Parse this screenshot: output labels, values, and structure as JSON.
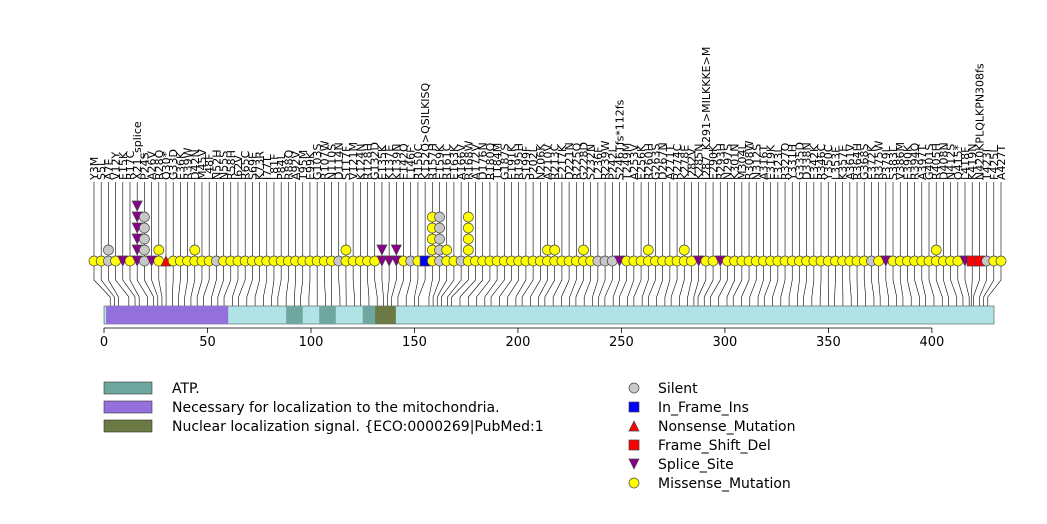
{
  "chart_data": {
    "type": "scatter",
    "protein_length": 430,
    "x_axis": {
      "ticks": [
        0,
        50,
        100,
        150,
        200,
        250,
        300,
        350,
        400
      ],
      "range": [
        0,
        430
      ]
    },
    "domains": [
      {
        "name": "Necessary for localization to the mitochondria.",
        "start": 1,
        "end": 60,
        "color": "#9370db"
      },
      {
        "name": "ATP.",
        "start": 88,
        "end": 96,
        "color": "#6ea6a0"
      },
      {
        "name": "ATP.",
        "start": 104,
        "end": 112,
        "color": "#6ea6a0"
      },
      {
        "name": "ATP.",
        "start": 125,
        "end": 132,
        "color": "#6ea6a0"
      },
      {
        "name": "Nuclear localization signal. {ECO:0000269|PubMed:1",
        "start": 131,
        "end": 141,
        "color": "#6b7a45"
      }
    ],
    "legend_domains": [
      {
        "label": "ATP.",
        "color": "#6ea6a0"
      },
      {
        "label": "Necessary for localization to the mitochondria.",
        "color": "#9370db"
      },
      {
        "label": "Nuclear localization signal. {ECO:0000269|PubMed:1",
        "color": "#6b7a45"
      }
    ],
    "legend_types": [
      {
        "label": "Silent",
        "shape": "circle",
        "color": "#c8c8c8"
      },
      {
        "label": "In_Frame_Ins",
        "shape": "square",
        "color": "#0000ff"
      },
      {
        "label": "Nonsense_Mutation",
        "shape": "triangle-up",
        "color": "#ff0000"
      },
      {
        "label": "Frame_Shift_Del",
        "shape": "square",
        "color": "#ff0000"
      },
      {
        "label": "Splice_Site",
        "shape": "triangle-down",
        "color": "#8b008b"
      },
      {
        "label": "Missense_Mutation",
        "shape": "circle",
        "color": "#ffff00"
      }
    ],
    "mutations": [
      {
        "label": "Y3M",
        "pos": 3,
        "type": "Missense_Mutation",
        "count": 1
      },
      {
        "label": "S5L",
        "pos": 5,
        "type": "Missense_Mutation",
        "count": 1
      },
      {
        "label": "A7E",
        "pos": 7,
        "type": "Silent",
        "count": 2
      },
      {
        "label": "V12Y",
        "pos": 12,
        "type": "Missense_Mutation",
        "count": 1
      },
      {
        "label": "E15K",
        "pos": 15,
        "type": "Splice_Site",
        "count": 1
      },
      {
        "label": "R17C",
        "pos": 17,
        "type": "Missense_Mutation",
        "count": 1
      },
      {
        "label": "X21_splice",
        "pos": 21,
        "type": "Splice_Site",
        "count": 6
      },
      {
        "label": "P24S",
        "pos": 24,
        "type": "Silent",
        "count": 5
      },
      {
        "label": "A26V",
        "pos": 26,
        "type": "Splice_Site",
        "count": 1
      },
      {
        "label": "R28Q",
        "pos": 28,
        "type": "Missense_Mutation",
        "count": 2
      },
      {
        "label": "Q30*",
        "pos": 30,
        "type": "Nonsense_Mutation",
        "count": 1
      },
      {
        "label": "G33D",
        "pos": 33,
        "type": "Missense_Mutation",
        "count": 1
      },
      {
        "label": "E36K",
        "pos": 36,
        "type": "Missense_Mutation",
        "count": 1
      },
      {
        "label": "R39W",
        "pos": 39,
        "type": "Missense_Mutation",
        "count": 1
      },
      {
        "label": "D42N",
        "pos": 42,
        "type": "Missense_Mutation",
        "count": 2
      },
      {
        "label": "M45V",
        "pos": 45,
        "type": "Missense_Mutation",
        "count": 1
      },
      {
        "label": "L48F",
        "pos": 48,
        "type": "Missense_Mutation",
        "count": 1
      },
      {
        "label": "N52H",
        "pos": 52,
        "type": "Silent",
        "count": 1
      },
      {
        "label": "N55S",
        "pos": 55,
        "type": "Missense_Mutation",
        "count": 1
      },
      {
        "label": "R58H",
        "pos": 58,
        "type": "Missense_Mutation",
        "count": 1
      },
      {
        "label": "I62V",
        "pos": 62,
        "type": "Missense_Mutation",
        "count": 1
      },
      {
        "label": "R65C",
        "pos": 65,
        "type": "Missense_Mutation",
        "count": 1
      },
      {
        "label": "S69E",
        "pos": 69,
        "type": "Missense_Mutation",
        "count": 1
      },
      {
        "label": "K73R",
        "pos": 73,
        "type": "Missense_Mutation",
        "count": 1
      },
      {
        "label": "I77T",
        "pos": 77,
        "type": "Missense_Mutation",
        "count": 1
      },
      {
        "label": "L81F",
        "pos": 81,
        "type": "Missense_Mutation",
        "count": 1
      },
      {
        "label": "P84L",
        "pos": 84,
        "type": "Missense_Mutation",
        "count": 1
      },
      {
        "label": "R88Q",
        "pos": 88,
        "type": "Missense_Mutation",
        "count": 1
      },
      {
        "label": "A92V",
        "pos": 92,
        "type": "Missense_Mutation",
        "count": 1
      },
      {
        "label": "T95M",
        "pos": 95,
        "type": "Missense_Mutation",
        "count": 1
      },
      {
        "label": "E99K",
        "pos": 99,
        "type": "Missense_Mutation",
        "count": 1
      },
      {
        "label": "G103S",
        "pos": 103,
        "type": "Missense_Mutation",
        "count": 1
      },
      {
        "label": "R107W",
        "pos": 107,
        "type": "Missense_Mutation",
        "count": 1
      },
      {
        "label": "N110S",
        "pos": 110,
        "type": "Missense_Mutation",
        "count": 1
      },
      {
        "label": "D114N",
        "pos": 114,
        "type": "Silent",
        "count": 1
      },
      {
        "label": "S117F",
        "pos": 117,
        "type": "Missense_Mutation",
        "count": 2
      },
      {
        "label": "V121M",
        "pos": 121,
        "type": "Missense_Mutation",
        "count": 1
      },
      {
        "label": "K124N",
        "pos": 124,
        "type": "Missense_Mutation",
        "count": 1
      },
      {
        "label": "R128H",
        "pos": 128,
        "type": "Missense_Mutation",
        "count": 1
      },
      {
        "label": "G132D",
        "pos": 132,
        "type": "Missense_Mutation",
        "count": 1
      },
      {
        "label": "E135K",
        "pos": 135,
        "type": "Splice_Site",
        "count": 2
      },
      {
        "label": "K137E",
        "pos": 137,
        "type": "Splice_Site",
        "count": 1
      },
      {
        "label": "K139N",
        "pos": 139,
        "type": "Splice_Site",
        "count": 2
      },
      {
        "label": "E142Q",
        "pos": 142,
        "type": "Missense_Mutation",
        "count": 1
      },
      {
        "label": "L146F",
        "pos": 146,
        "type": "Silent",
        "count": 1
      },
      {
        "label": "R150C",
        "pos": 150,
        "type": "Missense_Mutation",
        "count": 1
      },
      {
        "label": "K152Q>QSILKISQ",
        "pos": 152,
        "type": "In_Frame_Ins",
        "count": 1
      },
      {
        "label": "R157H",
        "pos": 157,
        "type": "Missense_Mutation",
        "count": 5
      },
      {
        "label": "E159K",
        "pos": 159,
        "type": "Silent",
        "count": 5
      },
      {
        "label": "R161C",
        "pos": 161,
        "type": "Missense_Mutation",
        "count": 2
      },
      {
        "label": "E163K",
        "pos": 163,
        "type": "Missense_Mutation",
        "count": 1
      },
      {
        "label": "A166V",
        "pos": 166,
        "type": "Silent",
        "count": 1
      },
      {
        "label": "R168W",
        "pos": 168,
        "type": "Missense_Mutation",
        "count": 5
      },
      {
        "label": "A172V",
        "pos": 172,
        "type": "Missense_Mutation",
        "count": 1
      },
      {
        "label": "D176N",
        "pos": 176,
        "type": "Missense_Mutation",
        "count": 1
      },
      {
        "label": "R180Q",
        "pos": 180,
        "type": "Missense_Mutation",
        "count": 1
      },
      {
        "label": "T184M",
        "pos": 184,
        "type": "Missense_Mutation",
        "count": 1
      },
      {
        "label": "G187S",
        "pos": 187,
        "type": "Missense_Mutation",
        "count": 1
      },
      {
        "label": "E191K",
        "pos": 191,
        "type": "Missense_Mutation",
        "count": 1
      },
      {
        "label": "R195H",
        "pos": 195,
        "type": "Missense_Mutation",
        "count": 1
      },
      {
        "label": "S199F",
        "pos": 199,
        "type": "Missense_Mutation",
        "count": 1
      },
      {
        "label": "P202L",
        "pos": 202,
        "type": "Missense_Mutation",
        "count": 1
      },
      {
        "label": "N206K",
        "pos": 206,
        "type": "Missense_Mutation",
        "count": 1
      },
      {
        "label": "A210V",
        "pos": 210,
        "type": "Missense_Mutation",
        "count": 2
      },
      {
        "label": "R213C",
        "pos": 213,
        "type": "Missense_Mutation",
        "count": 2
      },
      {
        "label": "E217K",
        "pos": 217,
        "type": "Missense_Mutation",
        "count": 1
      },
      {
        "label": "D221N",
        "pos": 221,
        "type": "Missense_Mutation",
        "count": 1
      },
      {
        "label": "R225Q",
        "pos": 225,
        "type": "Missense_Mutation",
        "count": 1
      },
      {
        "label": "G228D",
        "pos": 228,
        "type": "Missense_Mutation",
        "count": 2
      },
      {
        "label": "S232N",
        "pos": 232,
        "type": "Missense_Mutation",
        "count": 1
      },
      {
        "label": "L236F",
        "pos": 236,
        "type": "Silent",
        "count": 1
      },
      {
        "label": "R239W",
        "pos": 239,
        "type": "Silent",
        "count": 1
      },
      {
        "label": "P242L",
        "pos": 242,
        "type": "Silent",
        "count": 1
      },
      {
        "label": "S246Tfs*112fs",
        "pos": 246,
        "type": "Splice_Site",
        "count": 1
      },
      {
        "label": "T249M",
        "pos": 249,
        "type": "Missense_Mutation",
        "count": 1
      },
      {
        "label": "A253V",
        "pos": 253,
        "type": "Missense_Mutation",
        "count": 1
      },
      {
        "label": "E256K",
        "pos": 256,
        "type": "Missense_Mutation",
        "count": 1
      },
      {
        "label": "R260H",
        "pos": 260,
        "type": "Missense_Mutation",
        "count": 2
      },
      {
        "label": "G263S",
        "pos": 263,
        "type": "Missense_Mutation",
        "count": 1
      },
      {
        "label": "D267N",
        "pos": 267,
        "type": "Missense_Mutation",
        "count": 1
      },
      {
        "label": "A271T",
        "pos": 271,
        "type": "Missense_Mutation",
        "count": 1
      },
      {
        "label": "R274C",
        "pos": 274,
        "type": "Missense_Mutation",
        "count": 1
      },
      {
        "label": "K278E",
        "pos": 278,
        "type": "Missense_Mutation",
        "count": 2
      },
      {
        "label": "I282V",
        "pos": 282,
        "type": "Missense_Mutation",
        "count": 1
      },
      {
        "label": "K285N",
        "pos": 285,
        "type": "Splice_Site",
        "count": 1
      },
      {
        "label": "I287_K291>MILKKKE>M",
        "pos": 287,
        "type": "Missense_Mutation",
        "count": 1
      },
      {
        "label": "E290K",
        "pos": 290,
        "type": "Missense_Mutation",
        "count": 1
      },
      {
        "label": "R293H",
        "pos": 293,
        "type": "Splice_Site",
        "count": 1
      },
      {
        "label": "N297S",
        "pos": 297,
        "type": "Missense_Mutation",
        "count": 1
      },
      {
        "label": "K301N",
        "pos": 301,
        "type": "Missense_Mutation",
        "count": 1
      },
      {
        "label": "M304L",
        "pos": 304,
        "type": "Missense_Mutation",
        "count": 1
      },
      {
        "label": "R308W",
        "pos": 308,
        "type": "Missense_Mutation",
        "count": 1
      },
      {
        "label": "N312S",
        "pos": 312,
        "type": "Missense_Mutation",
        "count": 1
      },
      {
        "label": "A316T",
        "pos": 316,
        "type": "Missense_Mutation",
        "count": 1
      },
      {
        "label": "E319K",
        "pos": 319,
        "type": "Missense_Mutation",
        "count": 1
      },
      {
        "label": "F323L",
        "pos": 323,
        "type": "Missense_Mutation",
        "count": 1
      },
      {
        "label": "R327Q",
        "pos": 327,
        "type": "Missense_Mutation",
        "count": 1
      },
      {
        "label": "Y331H",
        "pos": 331,
        "type": "Missense_Mutation",
        "count": 1
      },
      {
        "label": "G335D",
        "pos": 335,
        "type": "Missense_Mutation",
        "count": 1
      },
      {
        "label": "D338N",
        "pos": 338,
        "type": "Missense_Mutation",
        "count": 1
      },
      {
        "label": "E342K",
        "pos": 342,
        "type": "Missense_Mutation",
        "count": 1
      },
      {
        "label": "R346C",
        "pos": 346,
        "type": "Missense_Mutation",
        "count": 1
      },
      {
        "label": "Y350C",
        "pos": 350,
        "type": "Missense_Mutation",
        "count": 1
      },
      {
        "label": "L353F",
        "pos": 353,
        "type": "Missense_Mutation",
        "count": 1
      },
      {
        "label": "K357E",
        "pos": 357,
        "type": "Missense_Mutation",
        "count": 1
      },
      {
        "label": "A361V",
        "pos": 361,
        "type": "Missense_Mutation",
        "count": 1
      },
      {
        "label": "R364H",
        "pos": 364,
        "type": "Missense_Mutation",
        "count": 1
      },
      {
        "label": "G368S",
        "pos": 368,
        "type": "Missense_Mutation",
        "count": 1
      },
      {
        "label": "E372K",
        "pos": 372,
        "type": "Silent",
        "count": 1
      },
      {
        "label": "R375W",
        "pos": 375,
        "type": "Missense_Mutation",
        "count": 1
      },
      {
        "label": "P379L",
        "pos": 379,
        "type": "Splice_Site",
        "count": 1
      },
      {
        "label": "S383L",
        "pos": 383,
        "type": "Missense_Mutation",
        "count": 1
      },
      {
        "label": "V386M",
        "pos": 386,
        "type": "Missense_Mutation",
        "count": 1
      },
      {
        "label": "E390K",
        "pos": 390,
        "type": "Missense_Mutation",
        "count": 1
      },
      {
        "label": "R394Q",
        "pos": 394,
        "type": "Missense_Mutation",
        "count": 1
      },
      {
        "label": "A397T",
        "pos": 397,
        "type": "Missense_Mutation",
        "count": 1
      },
      {
        "label": "G401S",
        "pos": 401,
        "type": "Missense_Mutation",
        "count": 1
      },
      {
        "label": "R405H",
        "pos": 405,
        "type": "Missense_Mutation",
        "count": 2
      },
      {
        "label": "D408N",
        "pos": 408,
        "type": "Missense_Mutation",
        "count": 1
      },
      {
        "label": "N412S",
        "pos": 412,
        "type": "Missense_Mutation",
        "count": 1
      },
      {
        "label": "Q415*",
        "pos": 415,
        "type": "Missense_Mutation",
        "count": 1
      },
      {
        "label": "L418F",
        "pos": 418,
        "type": "Splice_Site",
        "count": 1
      },
      {
        "label": "K419N",
        "pos": 419,
        "type": "Frame_Shift_Del",
        "count": 1
      },
      {
        "label": "N420KPLQLKPN308fs",
        "pos": 420,
        "type": "Frame_Shift_Del",
        "count": 1
      },
      {
        "label": "T423I",
        "pos": 423,
        "type": "Silent",
        "count": 1
      },
      {
        "label": "F425L",
        "pos": 425,
        "type": "Missense_Mutation",
        "count": 1
      },
      {
        "label": "A427T",
        "pos": 427,
        "type": "Missense_Mutation",
        "count": 1
      }
    ]
  }
}
